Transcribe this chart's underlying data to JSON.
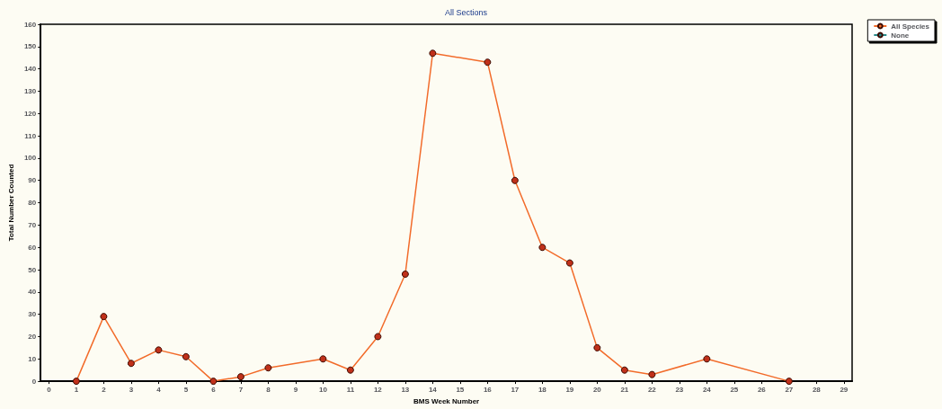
{
  "chart_data": {
    "type": "line",
    "title": "All Sections",
    "xlabel": "BMS Week Number",
    "ylabel": "Total Number Counted",
    "series": [
      {
        "name": "All Species",
        "color": "#f26b2a",
        "x": [
          1,
          2,
          3,
          4,
          5,
          6,
          7,
          8,
          10,
          11,
          12,
          13,
          14,
          16,
          17,
          18,
          19,
          20,
          21,
          22,
          24,
          27
        ],
        "values": [
          0,
          29,
          8,
          14,
          11,
          0,
          2,
          6,
          10,
          5,
          20,
          48,
          147,
          143,
          90,
          60,
          53,
          15,
          5,
          3,
          10,
          0
        ]
      },
      {
        "name": "None",
        "color": "#2a8a8a"
      }
    ],
    "xlim": [
      -0.3,
      29.3
    ],
    "xticks": [
      0,
      1,
      2,
      3,
      4,
      5,
      6,
      7,
      8,
      9,
      10,
      11,
      12,
      13,
      14,
      15,
      16,
      17,
      18,
      19,
      20,
      21,
      22,
      23,
      24,
      25,
      26,
      27,
      28,
      29
    ],
    "ylim": [
      0,
      160
    ],
    "yticks": [
      0,
      10,
      20,
      30,
      40,
      50,
      60,
      70,
      80,
      90,
      100,
      110,
      120,
      130,
      140,
      150,
      160
    ],
    "grid": false,
    "legend": "top right",
    "marker": "circle",
    "line_style": "solid"
  }
}
